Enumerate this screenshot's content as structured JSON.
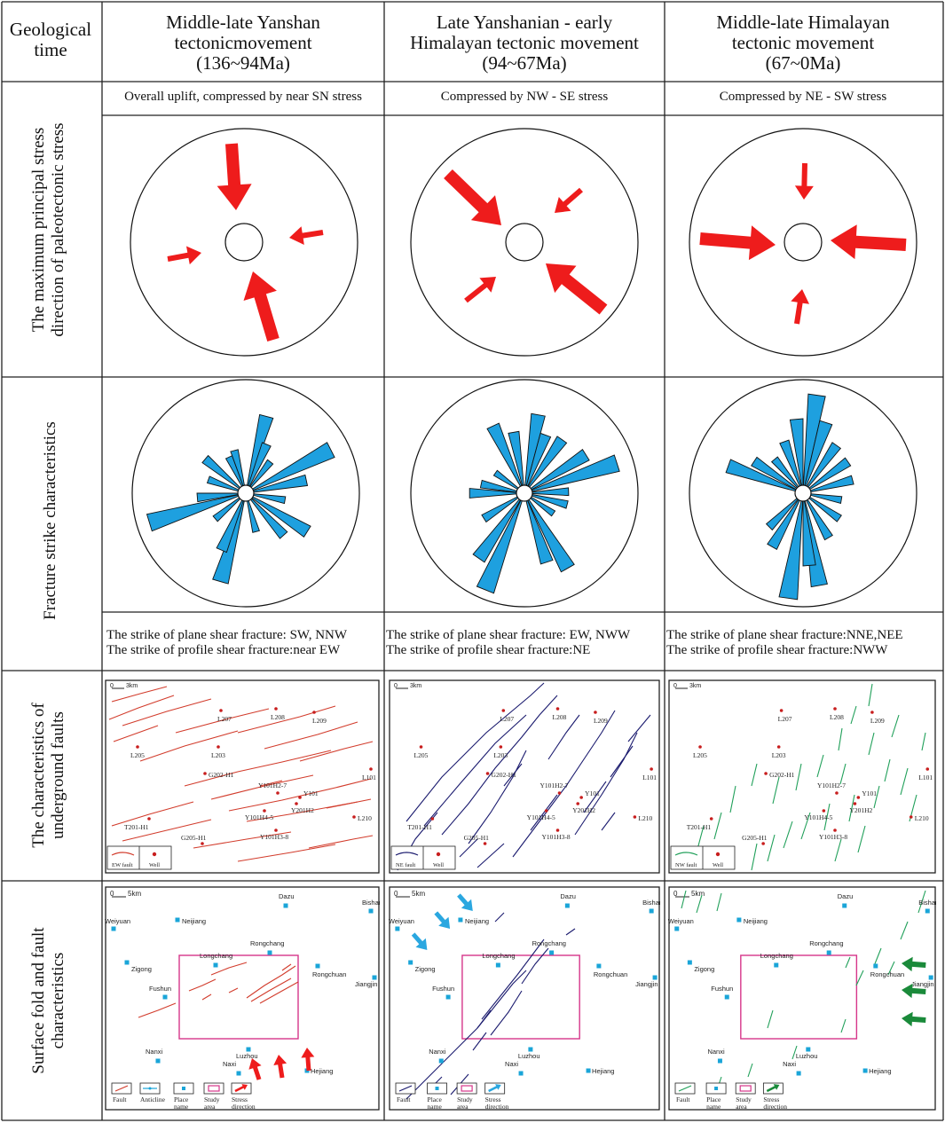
{
  "header": {
    "geo_time": [
      "Geological",
      "time"
    ],
    "columns": [
      {
        "title_lines": [
          "Middle-late Yanshan",
          "tectonicmovement",
          "(136~94Ma)"
        ]
      },
      {
        "title_lines": [
          "Late Yanshanian - early",
          "Himalayan tectonic movement",
          "(94~67Ma)"
        ]
      },
      {
        "title_lines": [
          "Middle-late Himalayan",
          "tectonic movement",
          "(67~0Ma)"
        ]
      }
    ]
  },
  "rows": {
    "stress": {
      "label_lines": [
        "The maximum principal stress",
        "direction of paleotectonic stress"
      ],
      "captions": [
        "Overall uplift, compressed by near SN stress",
        "Compressed by NW - SE stress",
        "Compressed by NE - SW stress"
      ]
    },
    "fracture": {
      "label": "Fracture strike characteristics",
      "strikes": [
        {
          "plane": "The strike of plane shear fracture: SW, NNW",
          "profile": "The strike of profile shear fracture:near EW"
        },
        {
          "plane": "The strike of plane shear fracture: EW, NWW",
          "profile": "The strike of profile shear fracture:NE"
        },
        {
          "plane": "The strike of plane shear fracture:NNE,NEE",
          "profile": "The strike of profile shear fracture:NWW"
        }
      ]
    },
    "underground": {
      "label_lines": [
        "The characteristics of",
        "underground faults"
      ],
      "scale": "3km",
      "wells": [
        "L207",
        "L208",
        "L209",
        "L205",
        "L203",
        "G202-H1",
        "L101",
        "Y101H2-7",
        "Y101",
        "Y201H2",
        "Y101H4-5",
        "T201-H1",
        "L210",
        "Y101H3-8",
        "G205-H1"
      ],
      "legends": [
        {
          "fault": "EW fault",
          "well": "Well"
        },
        {
          "fault": "NE fault",
          "well": "Well"
        },
        {
          "fault": "NW fault",
          "well": "Well"
        }
      ]
    },
    "surface": {
      "label_lines": [
        "Surface fold and fault",
        "characteristics"
      ],
      "scale": "5km",
      "places": [
        "Dazu",
        "Bishan",
        "Weiyuan",
        "Neijiang",
        "Zigong",
        "Longchang",
        "Rongchang",
        "Rongchuan",
        "Jiangjin",
        "Fushun",
        "Nanxi",
        "Luzhou",
        "Naxi",
        "Hejiang"
      ],
      "legend_left": {
        "fault": "Fault",
        "anticline": "Anticline",
        "place": [
          "Place",
          "name"
        ],
        "study": [
          "Study",
          "area"
        ],
        "stress": [
          "Stress",
          "direction"
        ]
      },
      "legend_other": {
        "fault": "Fault",
        "place": [
          "Place",
          "name"
        ],
        "study": [
          "Study",
          "area"
        ],
        "stress": [
          "Stress",
          "direction"
        ]
      }
    }
  },
  "colors": {
    "stress_arrow": "#ee1c1c",
    "rose_petal": "#1ea0df",
    "fault_red": "#d23c2c",
    "fault_blue": "#1a1a6e",
    "fault_green": "#21a05a",
    "place_marker": "#1aa5d8",
    "study_area": "#d6368a",
    "stress_arrow_blue": "#2aa7e0",
    "stress_arrow_green": "#1a8a3a"
  },
  "rose_data": [
    [
      {
        "az": 15,
        "len": 90
      },
      {
        "az": 23,
        "len": 60
      },
      {
        "az": 38,
        "len": 45
      },
      {
        "az": 63,
        "len": 108
      },
      {
        "az": 78,
        "len": 70
      },
      {
        "az": 100,
        "len": 45
      },
      {
        "az": 122,
        "len": 82
      },
      {
        "az": 138,
        "len": 64
      },
      {
        "az": 165,
        "len": 45
      },
      {
        "az": 196,
        "len": 104
      },
      {
        "az": 203,
        "len": 70
      },
      {
        "az": 230,
        "len": 45
      },
      {
        "az": 253,
        "len": 114
      },
      {
        "az": 265,
        "len": 55
      },
      {
        "az": 290,
        "len": 45
      },
      {
        "az": 310,
        "len": 60
      },
      {
        "az": 335,
        "len": 45
      },
      {
        "az": 345,
        "len": 50
      }
    ],
    [
      {
        "az": 10,
        "len": 90
      },
      {
        "az": 20,
        "len": 70
      },
      {
        "az": 35,
        "len": 74
      },
      {
        "az": 58,
        "len": 82
      },
      {
        "az": 72,
        "len": 110
      },
      {
        "az": 88,
        "len": 50
      },
      {
        "az": 105,
        "len": 50
      },
      {
        "az": 125,
        "len": 40
      },
      {
        "az": 150,
        "len": 98
      },
      {
        "az": 162,
        "len": 82
      },
      {
        "az": 202,
        "len": 118
      },
      {
        "az": 215,
        "len": 90
      },
      {
        "az": 238,
        "len": 54
      },
      {
        "az": 270,
        "len": 62
      },
      {
        "az": 282,
        "len": 50
      },
      {
        "az": 305,
        "len": 40
      },
      {
        "az": 335,
        "len": 84
      },
      {
        "az": 350,
        "len": 70
      }
    ],
    [
      {
        "az": 8,
        "len": 112
      },
      {
        "az": 18,
        "len": 84
      },
      {
        "az": 35,
        "len": 66
      },
      {
        "az": 55,
        "len": 62
      },
      {
        "az": 75,
        "len": 58
      },
      {
        "az": 100,
        "len": 44
      },
      {
        "az": 125,
        "len": 50
      },
      {
        "az": 150,
        "len": 58
      },
      {
        "az": 170,
        "len": 106
      },
      {
        "az": 175,
        "len": 82
      },
      {
        "az": 188,
        "len": 120
      },
      {
        "az": 210,
        "len": 70
      },
      {
        "az": 225,
        "len": 54
      },
      {
        "az": 290,
        "len": 90
      },
      {
        "az": 303,
        "len": 66
      },
      {
        "az": 320,
        "len": 50
      },
      {
        "az": 340,
        "len": 62
      },
      {
        "az": 355,
        "len": 84
      }
    ]
  ]
}
